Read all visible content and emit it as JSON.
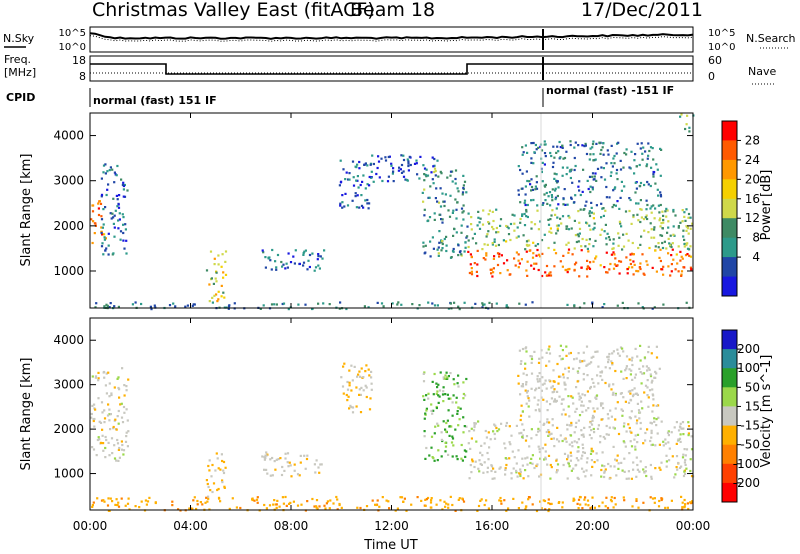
{
  "header": {
    "title": "Christmas Valley East (fitACF)",
    "beam": "Beam 18",
    "date": "17/Dec/2011"
  },
  "summary_panel": {
    "left_label_1": "N.Sky",
    "left_label_2": "Freq.",
    "left_label_3": "[MHz]",
    "left_label_4": "CPID",
    "right_label_1": "N.Search",
    "right_label_2": "Nave",
    "noise_left_ticks": [
      "10^5",
      "10^0"
    ],
    "noise_right_ticks": [
      "10^5",
      "10^0"
    ],
    "freq_left_ticks": [
      "18",
      "8"
    ],
    "freq_right_ticks": [
      "60",
      "0"
    ],
    "cpid_1": "normal (fast) 151 IF",
    "cpid_2": "normal (fast) -151 IF"
  },
  "axes": {
    "x_ticks": [
      "00:00",
      "04:00",
      "08:00",
      "12:00",
      "16:00",
      "20:00",
      "00:00"
    ],
    "x_label": "Time UT",
    "y_ticks": [
      "1000",
      "2000",
      "3000",
      "4000"
    ],
    "y_label": "Slant Range [km]"
  },
  "power_colorbar": {
    "label": "Power [dB]",
    "ticks": [
      "28",
      "24",
      "20",
      "16",
      "12",
      "8",
      "4"
    ],
    "colors": [
      "#ff0000",
      "#ff5a00",
      "#ff9800",
      "#f5d000",
      "#cfd84a",
      "#3e8a64",
      "#2d9a8a",
      "#2046a6",
      "#1818e0"
    ]
  },
  "velocity_colorbar": {
    "label": "Velocity [m s^-1]",
    "ticks": [
      "200",
      "100",
      "50",
      "15",
      "-15",
      "-50",
      "-100",
      "-200"
    ],
    "colors": [
      "#1818c8",
      "#2a8c9a",
      "#2aa02a",
      "#9bd84a",
      "#c8c8c0",
      "#ffb000",
      "#ff8000",
      "#ff4000",
      "#ff0000"
    ]
  },
  "chart_data": [
    {
      "type": "heatmap",
      "title": "Power",
      "x_range_hours": [
        0,
        24
      ],
      "y_range_km": [
        180,
        4500
      ],
      "scatter_regions": [
        {
          "t0": 0.0,
          "t1": 0.6,
          "r0": 1500,
          "r1": 2600,
          "p": 26
        },
        {
          "t0": 0.4,
          "t1": 1.5,
          "r0": 1300,
          "r1": 3400,
          "p": 6
        },
        {
          "t0": 4.6,
          "t1": 5.4,
          "r0": 350,
          "r1": 1500,
          "p": 18
        },
        {
          "t0": 6.8,
          "t1": 9.3,
          "r0": 950,
          "r1": 1500,
          "p": 6
        },
        {
          "t0": 9.9,
          "t1": 11.2,
          "r0": 2400,
          "r1": 3500,
          "p": 6
        },
        {
          "t0": 10.5,
          "t1": 13.8,
          "r0": 3000,
          "r1": 3600,
          "p": 5
        },
        {
          "t0": 13.2,
          "t1": 15.0,
          "r0": 1300,
          "r1": 3300,
          "p": 10
        },
        {
          "t0": 15.0,
          "t1": 24.0,
          "r0": 900,
          "r1": 1500,
          "p": 26
        },
        {
          "t0": 15.0,
          "t1": 24.0,
          "r0": 1500,
          "r1": 2400,
          "p": 13
        },
        {
          "t0": 17.0,
          "t1": 22.7,
          "r0": 2400,
          "r1": 3900,
          "p": 8
        },
        {
          "t0": 23.4,
          "t1": 24.0,
          "r0": 4100,
          "r1": 4500,
          "p": 12
        },
        {
          "t0": 0.0,
          "t1": 24.0,
          "r0": 180,
          "r1": 330,
          "p": 9
        }
      ]
    },
    {
      "type": "heatmap",
      "title": "Velocity",
      "x_range_hours": [
        0,
        24
      ],
      "y_range_km": [
        180,
        4500
      ],
      "scatter_regions": [
        {
          "t0": 0.0,
          "t1": 1.5,
          "r0": 1300,
          "r1": 3400,
          "v": 0
        },
        {
          "t0": 4.6,
          "t1": 5.4,
          "r0": 350,
          "r1": 1500,
          "v": -20
        },
        {
          "t0": 6.8,
          "t1": 9.3,
          "r0": 950,
          "r1": 1500,
          "v": -5
        },
        {
          "t0": 9.9,
          "t1": 11.2,
          "r0": 2400,
          "r1": 3500,
          "v": -10
        },
        {
          "t0": 13.2,
          "t1": 15.0,
          "r0": 1300,
          "r1": 3300,
          "v": 30
        },
        {
          "t0": 15.0,
          "t1": 24.0,
          "r0": 900,
          "r1": 2200,
          "v": 0
        },
        {
          "t0": 17.0,
          "t1": 22.7,
          "r0": 2200,
          "r1": 3900,
          "v": 0
        },
        {
          "t0": 0.0,
          "t1": 24.0,
          "r0": 180,
          "r1": 500,
          "v": -40
        }
      ]
    }
  ]
}
